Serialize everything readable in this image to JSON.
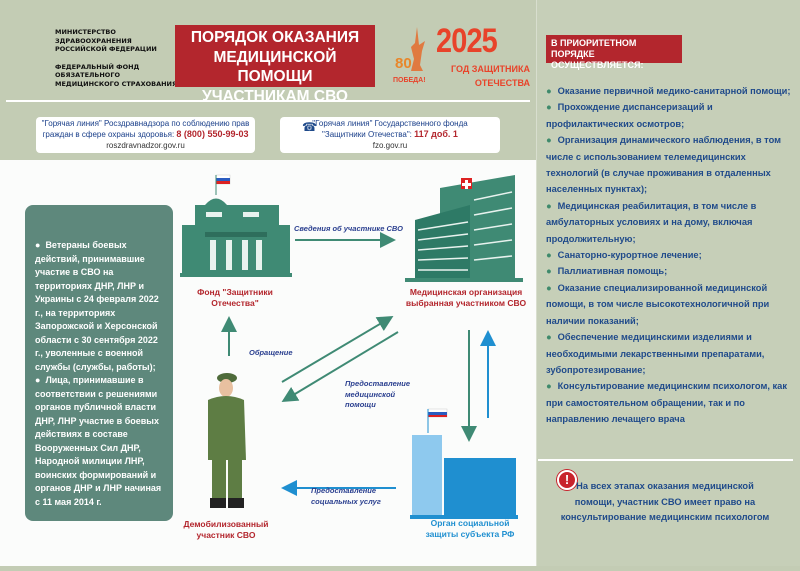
{
  "header": {
    "ministry_lines": [
      "МИНИСТЕРСТВО",
      "ЗДРАВООХРАНЕНИЯ",
      "РОССИЙСКОЙ ФЕДЕРАЦИИ",
      "",
      "ФЕДЕРАЛЬНЫЙ ФОНД",
      "ОБЯЗАТЕЛЬНОГО",
      "МЕДИЦИНСКОГО СТРАХОВАНИЯ"
    ],
    "title_lines": [
      "ПОРЯДОК ОКАЗАНИЯ",
      "МЕДИЦИНСКОЙ ПОМОЩИ",
      "УЧАСТНИКАМ СВО"
    ],
    "logo_80": "80",
    "logo_pobeda": "ПОБЕДА!",
    "year": "2025",
    "year_sub1": "ГОД ЗАЩИТНИКА",
    "year_sub2": "ОТЕЧЕСТВА"
  },
  "hotlines": [
    {
      "line1": "\"Горячая линия\" Росздравнадзора по соблюдению прав",
      "line2": "граждан в сфере охраны здоровья:",
      "phone": "8 (800) 550-99-03",
      "site": "roszdravnadzor.gov.ru"
    },
    {
      "line1": "\"Горячая линия\" Государственного фонда",
      "line2": "\"Защитники Отечества\":",
      "phone": "117 доб. 1",
      "site": "fzo.gov.ru",
      "icon": "phone-icon"
    }
  ],
  "left_box": {
    "items": [
      "Ветераны боевых действий, принимавшие участие в СВО на территориях ДНР, ЛНР и Украины с 24 февраля 2022 г., на территориях Запорожской и Херсонской области с 30 сентября 2022 г., уволенные с военной службы (службы, работы);",
      "Лица, принимавшие в соответствии с решениями органов публичной власти ДНР, ЛНР участие в боевых действиях в составе Вооруженных Сил ДНР, Народной милиции ЛНР, воинских формирований и органов ДНР и ЛНР начиная с 11 мая 2014 г."
    ]
  },
  "diagram": {
    "fund_label": "Фонд \"Защитники Отечества\"",
    "medorg_label": "Медицинская организация выбранная участником СВО",
    "soldier_label": "Демобилизованный участник СВО",
    "social_label": "Орган социальной защиты субъекта РФ",
    "arrow_info": "Сведения об участнике СВО",
    "arrow_appeal": "Обращение",
    "arrow_medhelp": "Предоставление медицинской помощи",
    "arrow_social": "Предоставление социальных услуг",
    "colors": {
      "teal": "#3f8a74",
      "blue": "#1f8fd0",
      "red": "#b3262d"
    }
  },
  "right_panel": {
    "heading": "В ПРИОРИТЕТНОМ ПОРЯДКЕ ОСУЩЕСТВЛЯЕТСЯ:",
    "items": [
      "Оказание первичной медико-санитарной помощи;",
      "Прохождение диспансеризаций и профилактических осмотров;",
      "Организация динамического наблюдения, в том числе с использованием телемедицинских технологий (в случае проживания в отдаленных населенных пунктах);",
      "Медицинская реабилитация, в том числе в амбулаторных условиях и на дому, включая продолжительную;",
      "Санаторно-курортное лечение;",
      "Паллиативная помощь;",
      "Оказание специализированной медицинской помощи, в том числе высокотехнологичной при наличии  показаний;",
      "Обеспечение медицинскими изделиями и  необходимыми лекарственными препаратами, зубопротезирование;",
      "Консультирование медицинским психологом, как при самостоятельном обращении, так и по направлению лечащего врача"
    ],
    "notice_icon": "exclamation-icon",
    "notice": "На всех этапах оказания медицинской помощи, участник СВО имеет право на консультирование медицинским психологом"
  }
}
